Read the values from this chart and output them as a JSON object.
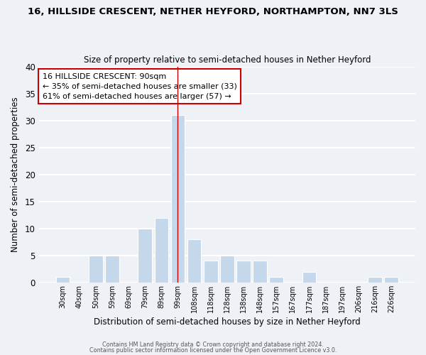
{
  "title": "16, HILLSIDE CRESCENT, NETHER HEYFORD, NORTHAMPTON, NN7 3LS",
  "subtitle": "Size of property relative to semi-detached houses in Nether Heyford",
  "xlabel": "Distribution of semi-detached houses by size in Nether Heyford",
  "ylabel": "Number of semi-detached properties",
  "bar_labels": [
    "30sqm",
    "40sqm",
    "50sqm",
    "59sqm",
    "69sqm",
    "79sqm",
    "89sqm",
    "99sqm",
    "108sqm",
    "118sqm",
    "128sqm",
    "138sqm",
    "148sqm",
    "157sqm",
    "167sqm",
    "177sqm",
    "187sqm",
    "197sqm",
    "206sqm",
    "216sqm",
    "226sqm"
  ],
  "bar_values": [
    1,
    0,
    5,
    5,
    0,
    10,
    12,
    31,
    8,
    4,
    5,
    4,
    4,
    1,
    0,
    2,
    0,
    0,
    0,
    1,
    1
  ],
  "highlight_bar_index": 7,
  "bar_color": "#c5d8eb",
  "highlight_bar_color": "#a8c4de",
  "annotation_title": "16 HILLSIDE CRESCENT: 90sqm",
  "annotation_line1": "← 35% of semi-detached houses are smaller (33)",
  "annotation_line2": "61% of semi-detached houses are larger (57) →",
  "annotation_box_color": "#ffffff",
  "annotation_box_edge": "#cc0000",
  "ylim": [
    0,
    40
  ],
  "yticks": [
    0,
    5,
    10,
    15,
    20,
    25,
    30,
    35,
    40
  ],
  "footer1": "Contains HM Land Registry data © Crown copyright and database right 2024.",
  "footer2": "Contains public sector information licensed under the Open Government Licence v3.0.",
  "bg_color": "#eef2f7",
  "grid_color": "#ffffff"
}
